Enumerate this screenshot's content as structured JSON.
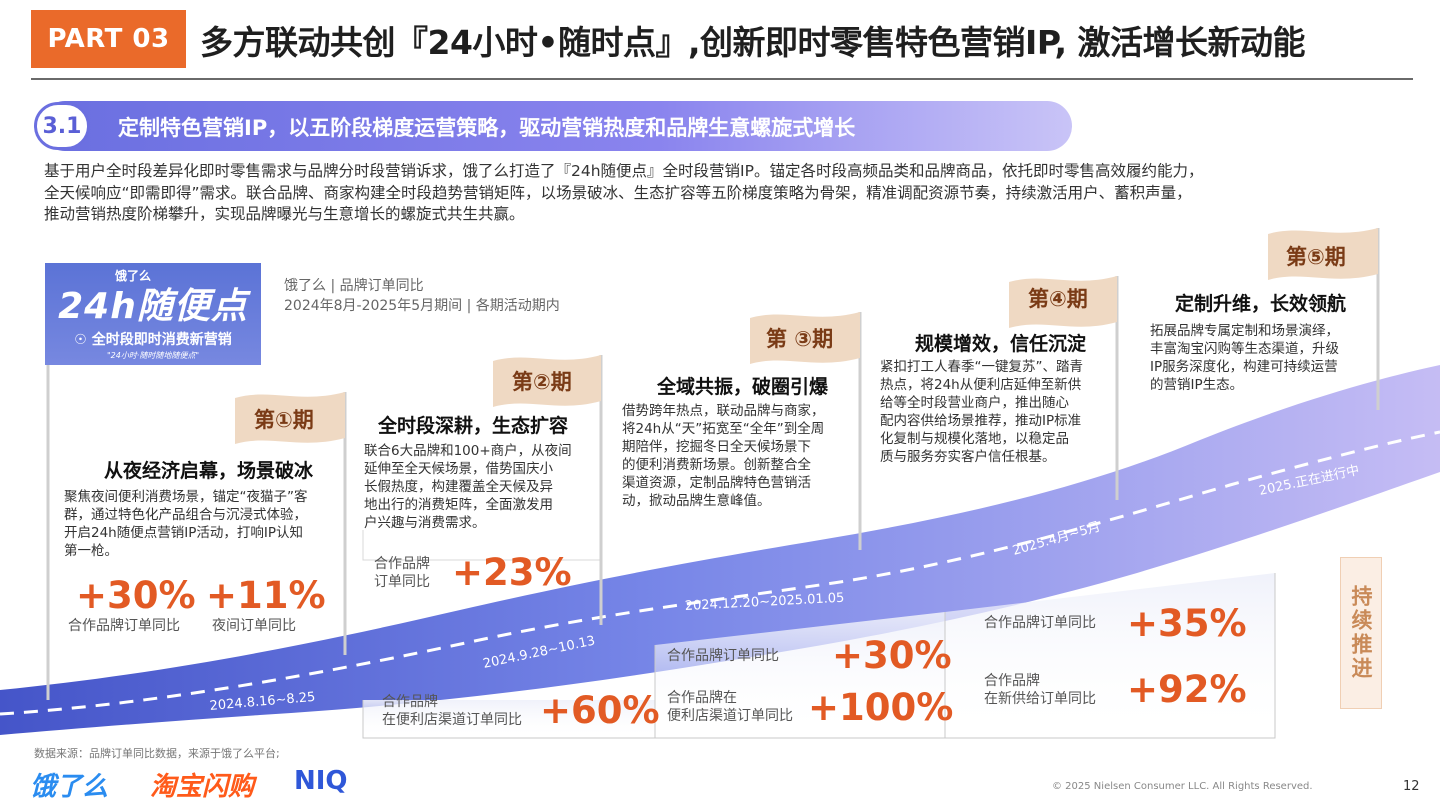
{
  "header": {
    "part": "PART 03",
    "title": "多方联动共创『24小时•随时点』,创新即时零售特色营销IP, 激活增长新动能"
  },
  "section": {
    "number": "3.1",
    "title": "定制特色营销IP，以五阶段梯度运营策略，驱动营销热度和品牌生意螺旋式增长"
  },
  "intro": [
    "基于用户全时段差异化即时零售需求与品牌分时段营销诉求，饿了么打造了『24h随便点』全时段营销IP。锚定各时段高频品类和品牌商品，依托即时零售高效履约能力，",
    "全天候响应“即需即得”需求。联合品牌、商家构建全时段趋势营销矩阵，以场景破冰、生态扩容等五阶梯度策略为骨架，精准调配资源节奏，持续激活用户、蓄积声量，",
    "推动营销热度阶梯攀升，实现品牌曝光与生意增长的螺旋式共生共赢。"
  ],
  "logo": {
    "small": "饿了么",
    "big": "24h随便点",
    "sub": "全时段即时消费新营销",
    "foot": "\"24小时·随时随地随便点\"",
    "icon": "lightbulb-icon"
  },
  "source_note": [
    "饿了么 | 品牌订单同比",
    "2024年8月-2025年5月期间 | 各期活动期内"
  ],
  "phases": [
    {
      "flag": "第①期",
      "title": "从夜经济启幕，场景破冰",
      "desc": [
        "聚焦夜间便利消费场景，锚定“夜猫子”客",
        "群，通过特色化产品组合与沉浸式体验，",
        "开启24h随便点营销IP活动，打响IP认知",
        "第一枪。"
      ],
      "date": "2024.8.16~8.25",
      "stats": [
        {
          "value": "+30%",
          "label": [
            "合作品牌订单同比"
          ]
        },
        {
          "value": "+11%",
          "label": [
            "夜间订单同比"
          ]
        }
      ]
    },
    {
      "flag": "第②期",
      "title": "全时段深耕，生态扩容",
      "desc": [
        "联合6大品牌和100+商户，从夜间",
        "延伸至全天候场景，借势国庆小",
        "长假热度，构建覆盖全天候及异",
        "地出行的消费矩阵，全面激发用",
        "户兴趣与消费需求。"
      ],
      "date": "2024.9.28~10.13",
      "stats": [
        {
          "value": "+23%",
          "label": [
            "合作品牌",
            "订单同比"
          ]
        },
        {
          "value": "+60%",
          "label": [
            "合作品牌",
            "在便利店渠道订单同比"
          ]
        }
      ]
    },
    {
      "flag": "第 ③期",
      "title": "全域共振，破圈引爆",
      "desc": [
        "借势跨年热点，联动品牌与商家，",
        "将24h从“天”拓宽至“全年”到全周",
        "期陪伴，挖掘冬日全天候场景下",
        "的便利消费新场景。创新整合全",
        "渠道资源，定制品牌特色营销活",
        "动，掀动品牌生意峰值。"
      ],
      "date": "2024.12.20~2025.01.05",
      "stats": [
        {
          "value": "+30%",
          "label": [
            "合作品牌订单同比"
          ]
        },
        {
          "value": "+100%",
          "label": [
            "合作品牌在",
            "便利店渠道订单同比"
          ]
        }
      ]
    },
    {
      "flag": "第④期",
      "title": "规模增效，信任沉淀",
      "desc": [
        "紧扣打工人春季“一键复苏”、踏青",
        "热点，将24h从便利店延伸至新供",
        "给等全时段营业商户，推出随心",
        "配内容供给场景推荐，推动IP标准",
        "化复制与规模化落地，以稳定品",
        "质与服务夯实客户信任根基。"
      ],
      "date": "2025.4月~5月",
      "stats": [
        {
          "value": "+35%",
          "label": [
            "合作品牌订单同比"
          ]
        },
        {
          "value": "+92%",
          "label": [
            "合作品牌",
            "在新供给订单同比"
          ]
        }
      ]
    },
    {
      "flag": "第⑤期",
      "title": "定制升维，长效领航",
      "desc": [
        "拓展品牌专属定制和场景演绎，",
        "丰富淘宝闪购等生态渠道，升级",
        "IP服务深度化，构建可持续运营",
        "的营销IP生态。"
      ],
      "date": "2025.正在进行中",
      "stats": []
    }
  ],
  "continue_label": "持续推进",
  "footer": {
    "note": "数据来源：品牌订单同比数据，来源于饿了么平台;",
    "brands": [
      "饿了么",
      "淘宝闪购",
      "NIQ"
    ],
    "copyright": "© 2025 Nielsen Consumer LLC. All Rights Reserved.",
    "page": "12"
  },
  "colors": {
    "accent_orange": "#e25a24",
    "part_tag": "#ea6a2a",
    "wave_dark": "#3f50c8",
    "wave_light": "#b9b3f2",
    "flag_fill": "#efd9c3",
    "flag_text": "#7a3b16"
  }
}
